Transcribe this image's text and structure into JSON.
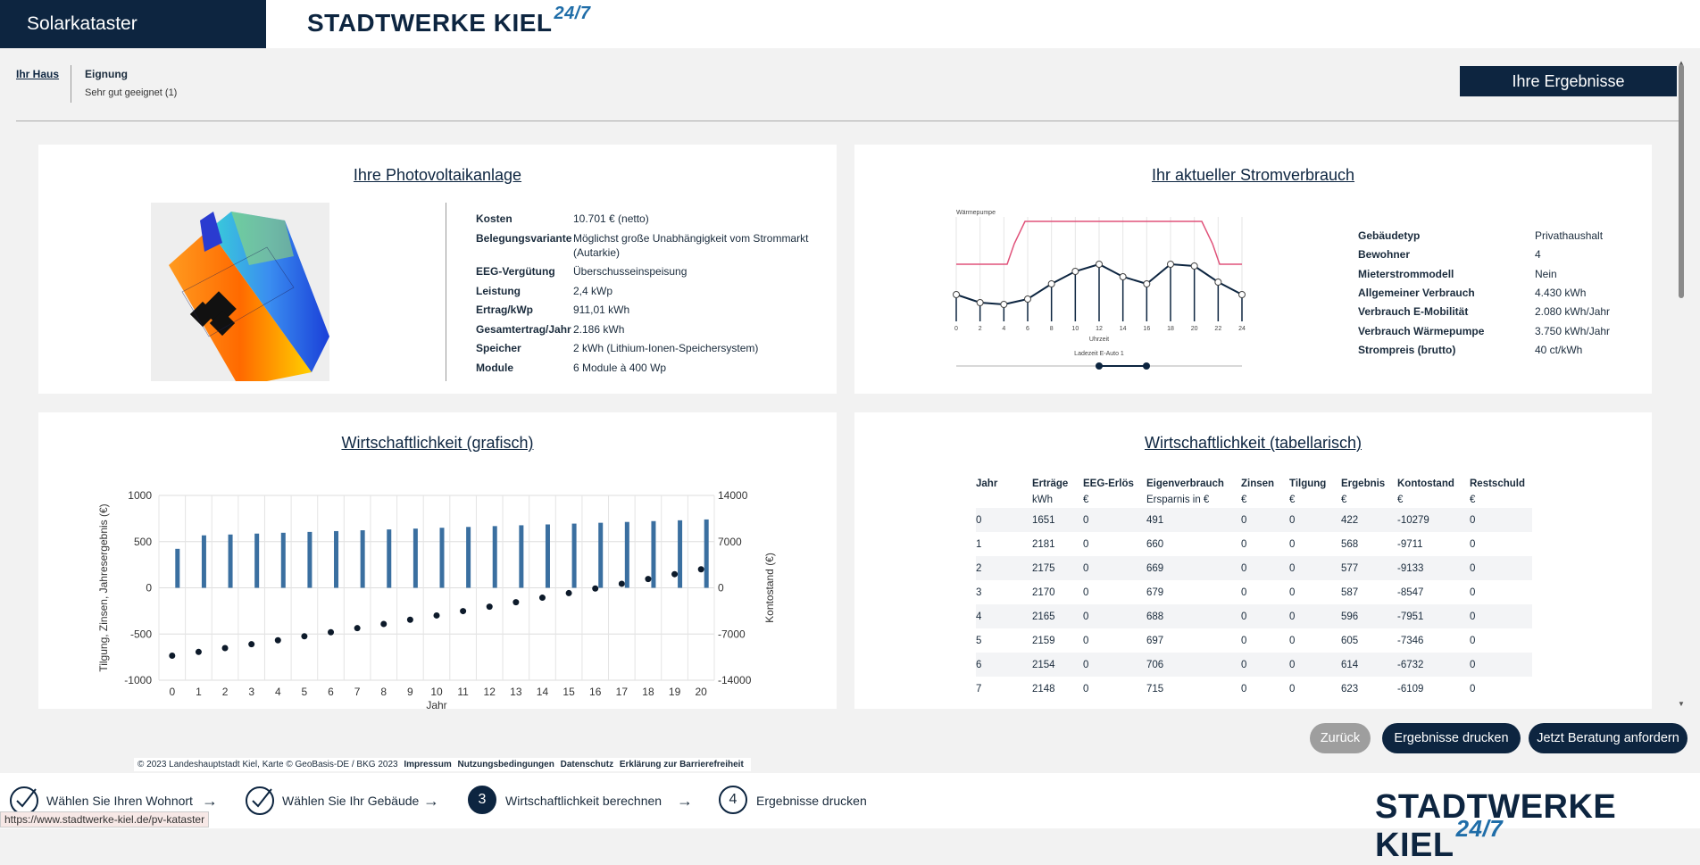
{
  "app": {
    "title": "Solarkataster"
  },
  "brand": {
    "name": "STADTWERKE KIEL",
    "suffix": "24/7"
  },
  "breadcrumb": {
    "home": "Ihr Haus",
    "title": "Eignung",
    "value": "Sehr gut geeignet (1)"
  },
  "header": {
    "results_button": "Ihre Ergebnisse"
  },
  "pv": {
    "title": "Ihre Photovoltaikanlage",
    "rows": [
      {
        "k": "Kosten",
        "v": "10.701 € (netto)"
      },
      {
        "k": "Belegungsvariante",
        "v": "Möglichst große Unabhängigkeit vom Strommarkt",
        "v2": "(Autarkie)"
      },
      {
        "k": "EEG-Vergütung",
        "v": "Überschusseinspeisung"
      },
      {
        "k": "Leistung",
        "v": "2,4 kWp"
      },
      {
        "k": "Ertrag/kWp",
        "v": "911,01 kWh"
      },
      {
        "k": "Gesamtertrag/Jahr",
        "v": "2.186 kWh"
      },
      {
        "k": "Speicher",
        "v": "2 kWh (Lithium-Ionen-Speichersystem)"
      },
      {
        "k": "Module",
        "v": "6 Module à 400 Wp"
      }
    ]
  },
  "consumption": {
    "title": "Ihr aktueller Stromverbrauch",
    "chart_label_top": "Wärmepumpe",
    "chart_xlabel": "Uhrzeit",
    "slider_label": "Ladezeit E-Auto 1",
    "x_ticks": [
      "0",
      "2",
      "4",
      "6",
      "8",
      "10",
      "12",
      "14",
      "16",
      "18",
      "20",
      "22",
      "24"
    ],
    "rows": [
      {
        "k": "Gebäudetyp",
        "v": "Privathaushalt"
      },
      {
        "k": "Bewohner",
        "v": "4"
      },
      {
        "k": "Mieterstrommodell",
        "v": "Nein"
      },
      {
        "k": "Allgemeiner Verbrauch",
        "v": "4.430 kWh"
      },
      {
        "k": "Verbrauch E-Mobilität",
        "v": "2.080 kWh/Jahr"
      },
      {
        "k": "Verbrauch Wärmepumpe",
        "v": "3.750 kWh/Jahr"
      },
      {
        "k": "Strompreis (brutto)",
        "v": "40 ct/kWh"
      }
    ]
  },
  "econ_chart": {
    "title": "Wirtschaftlichkeit (grafisch)"
  },
  "chart_data": {
    "type": "bar",
    "title": "Wirtschaftlichkeit (grafisch)",
    "xlabel": "Jahr",
    "ylabel": "Tilgung, Zinsen, Jahresergebnis (€)",
    "y2label": "Kontostand (€)",
    "ylim": [
      -1000,
      1000
    ],
    "y2lim": [
      -14000,
      14000
    ],
    "y_ticks": [
      "1000",
      "500",
      "0",
      "-500",
      "-1000"
    ],
    "y2_ticks": [
      "14000",
      "7000",
      "0",
      "-7000",
      "-14000"
    ],
    "categories": [
      "0",
      "1",
      "2",
      "3",
      "4",
      "5",
      "6",
      "7",
      "8",
      "9",
      "10",
      "11",
      "12",
      "13",
      "14",
      "15",
      "16",
      "17",
      "18",
      "19",
      "20"
    ],
    "series": [
      {
        "type": "bar",
        "values": [
          422,
          568,
          577,
          587,
          596,
          605,
          614,
          623,
          632,
          641,
          650,
          659,
          668,
          677,
          686,
          695,
          704,
          713,
          722,
          731,
          740
        ]
      },
      {
        "type": "scatter",
        "axis": "y2",
        "values": [
          -10279,
          -9711,
          -9133,
          -8547,
          -7951,
          -7346,
          -6732,
          -6109,
          -5477,
          -4836,
          -4186,
          -3527,
          -2859,
          -2182,
          -1496,
          -801,
          -97,
          616,
          1338,
          2069,
          2809
        ]
      }
    ]
  },
  "econ_table": {
    "title": "Wirtschaftlichkeit (tabellarisch)",
    "headers": [
      {
        "h": "Jahr",
        "u": ""
      },
      {
        "h": "Erträge",
        "u": "kWh"
      },
      {
        "h": "EEG-Erlös",
        "u": "€"
      },
      {
        "h": "Eigenverbrauch",
        "u": "Ersparnis in €"
      },
      {
        "h": "Zinsen",
        "u": "€"
      },
      {
        "h": "Tilgung",
        "u": "€"
      },
      {
        "h": "Ergebnis",
        "u": "€"
      },
      {
        "h": "Kontostand",
        "u": "€"
      },
      {
        "h": "Restschuld",
        "u": "€"
      }
    ],
    "rows": [
      [
        "0",
        "1651",
        "0",
        "491",
        "0",
        "0",
        "422",
        "-10279",
        "0"
      ],
      [
        "1",
        "2181",
        "0",
        "660",
        "0",
        "0",
        "568",
        "-9711",
        "0"
      ],
      [
        "2",
        "2175",
        "0",
        "669",
        "0",
        "0",
        "577",
        "-9133",
        "0"
      ],
      [
        "3",
        "2170",
        "0",
        "679",
        "0",
        "0",
        "587",
        "-8547",
        "0"
      ],
      [
        "4",
        "2165",
        "0",
        "688",
        "0",
        "0",
        "596",
        "-7951",
        "0"
      ],
      [
        "5",
        "2159",
        "0",
        "697",
        "0",
        "0",
        "605",
        "-7346",
        "0"
      ],
      [
        "6",
        "2154",
        "0",
        "706",
        "0",
        "0",
        "614",
        "-6732",
        "0"
      ],
      [
        "7",
        "2148",
        "0",
        "715",
        "0",
        "0",
        "623",
        "-6109",
        "0"
      ]
    ]
  },
  "footer": {
    "copyright": "© 2023 Landeshauptstadt Kiel, Karte © GeoBasis-DE / BKG 2023",
    "links": [
      "Impressum",
      "Nutzungsbedingungen",
      "Datenschutz",
      "Erklärung zur Barrierefreiheit"
    ]
  },
  "actions": {
    "back": "Zurück",
    "print": "Ergebnisse drucken",
    "advice": "Jetzt Beratung anfordern"
  },
  "steps": [
    {
      "num": "",
      "label": "Wählen Sie Ihren Wohnort",
      "state": "done"
    },
    {
      "num": "",
      "label": "Wählen Sie Ihr Gebäude",
      "state": "done"
    },
    {
      "num": "3",
      "label": "Wirtschaftlichkeit berechnen",
      "state": "active"
    },
    {
      "num": "4",
      "label": "Ergebnisse drucken",
      "state": "todo"
    }
  ],
  "status_url": "https://www.stadtwerke-kiel.de/pv-kataster",
  "colors": {
    "navy": "#0d2540",
    "bar": "#3a6fa0",
    "pink": "#e0527a",
    "grey_btn": "#9e9e9e"
  }
}
